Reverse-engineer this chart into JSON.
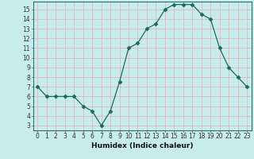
{
  "x": [
    0,
    1,
    2,
    3,
    4,
    5,
    6,
    7,
    8,
    9,
    10,
    11,
    12,
    13,
    14,
    15,
    16,
    17,
    18,
    19,
    20,
    21,
    22,
    23
  ],
  "y": [
    7,
    6,
    6,
    6,
    6,
    5,
    4.5,
    3,
    4.5,
    7.5,
    11,
    11.5,
    13,
    13.5,
    15,
    15.5,
    15.5,
    15.5,
    14.5,
    14,
    11,
    9,
    8,
    7
  ],
  "xlabel": "Humidex (Indice chaleur)",
  "yticks": [
    3,
    4,
    5,
    6,
    7,
    8,
    9,
    10,
    11,
    12,
    13,
    14,
    15
  ],
  "xticks": [
    0,
    1,
    2,
    3,
    4,
    5,
    6,
    7,
    8,
    9,
    10,
    11,
    12,
    13,
    14,
    15,
    16,
    17,
    18,
    19,
    20,
    21,
    22,
    23
  ],
  "line_color": "#1a6b5a",
  "marker": "D",
  "marker_size": 2.5,
  "bg_color": "#c8ecec",
  "grid_color": "#e0b8b8",
  "axis_color": "#2d6e6e",
  "label_fontsize": 6.5,
  "tick_fontsize": 5.5
}
